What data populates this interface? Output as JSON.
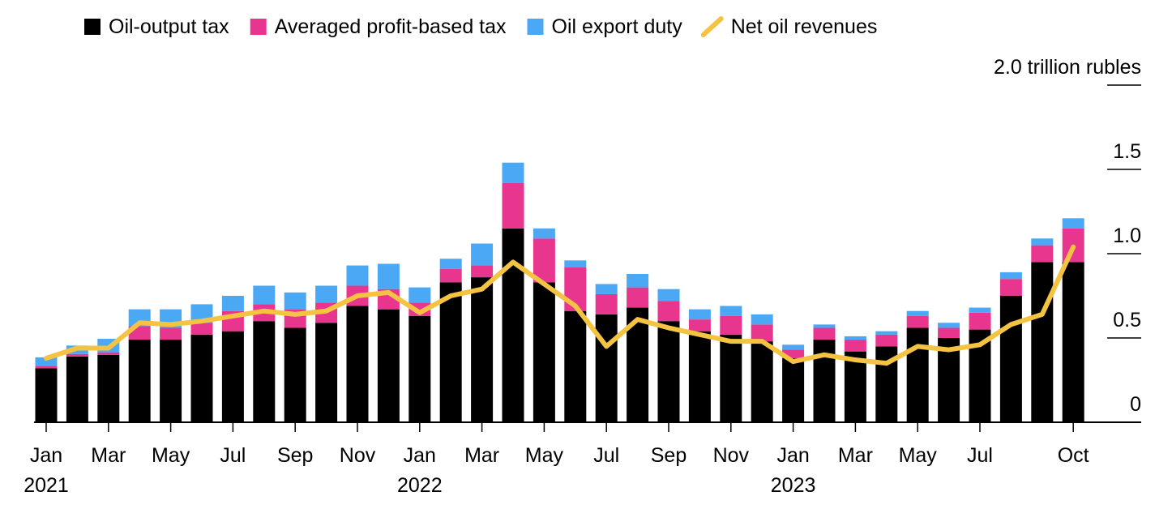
{
  "chart_data": {
    "type": "stacked-bar-line",
    "categories": [
      "Jan 2021",
      null,
      "Mar",
      null,
      "May",
      null,
      "Jul",
      null,
      "Sep",
      null,
      "Nov",
      null,
      "Jan 2022",
      null,
      "Mar",
      null,
      "May",
      null,
      "Jul",
      null,
      "Sep",
      null,
      "Nov",
      null,
      "Jan 2023",
      null,
      "Mar",
      null,
      "May",
      null,
      "Jul",
      null,
      null,
      "Oct"
    ],
    "series": [
      {
        "name": "Oil-output tax",
        "color": "#000000",
        "values": [
          0.32,
          0.39,
          0.4,
          0.49,
          0.49,
          0.52,
          0.54,
          0.6,
          0.56,
          0.59,
          0.69,
          0.67,
          0.63,
          0.83,
          0.86,
          1.15,
          0.83,
          0.66,
          0.64,
          0.68,
          0.6,
          0.54,
          0.52,
          0.48,
          0.38,
          0.49,
          0.42,
          0.45,
          0.56,
          0.5,
          0.55,
          0.75,
          0.95,
          0.95
        ]
      },
      {
        "name": "Averaged profit-based tax",
        "color": "#e8368f",
        "values": [
          0.015,
          0.015,
          0.015,
          0.08,
          0.07,
          0.07,
          0.12,
          0.1,
          0.11,
          0.12,
          0.12,
          0.12,
          0.08,
          0.08,
          0.07,
          0.27,
          0.26,
          0.26,
          0.12,
          0.12,
          0.12,
          0.07,
          0.11,
          0.1,
          0.05,
          0.07,
          0.07,
          0.07,
          0.07,
          0.06,
          0.1,
          0.1,
          0.1,
          0.2
        ]
      },
      {
        "name": "Oil export duty",
        "color": "#4aa8f5",
        "values": [
          0.05,
          0.05,
          0.08,
          0.1,
          0.11,
          0.11,
          0.09,
          0.11,
          0.1,
          0.1,
          0.12,
          0.15,
          0.09,
          0.06,
          0.13,
          0.12,
          0.06,
          0.04,
          0.06,
          0.08,
          0.07,
          0.06,
          0.06,
          0.06,
          0.03,
          0.02,
          0.02,
          0.02,
          0.03,
          0.03,
          0.03,
          0.04,
          0.04,
          0.06
        ]
      },
      {
        "name": "Net oil revenues",
        "color": "#f5c342",
        "kind": "line",
        "values": [
          0.38,
          0.44,
          0.44,
          0.59,
          0.58,
          0.6,
          0.63,
          0.66,
          0.64,
          0.66,
          0.75,
          0.77,
          0.65,
          0.75,
          0.79,
          0.95,
          0.82,
          0.69,
          0.45,
          0.61,
          0.56,
          0.52,
          0.48,
          0.48,
          0.36,
          0.4,
          0.37,
          0.35,
          0.45,
          0.43,
          0.46,
          0.58,
          0.64,
          1.04
        ]
      }
    ],
    "ylim": [
      0,
      2
    ],
    "yticks": [
      0,
      0.5,
      {
        "value": 1,
        "label": "1.0"
      },
      1.5,
      {
        "value": 2,
        "label": "2.0 trillion rubles"
      }
    ]
  }
}
